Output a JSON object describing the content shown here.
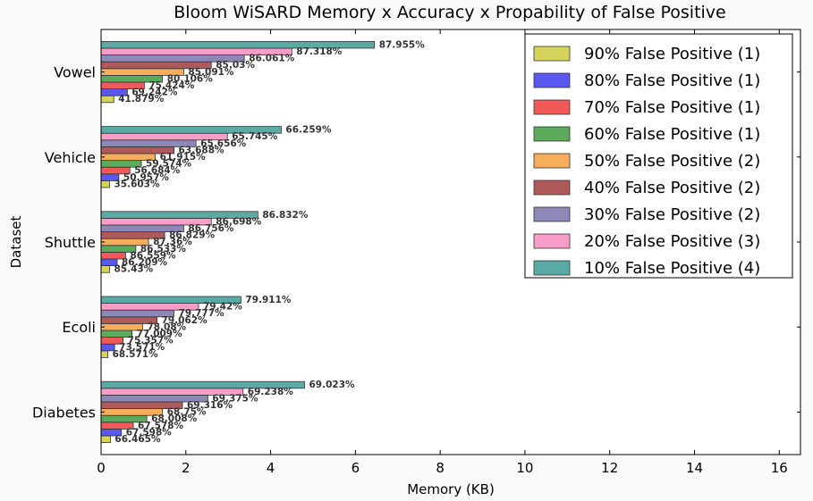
{
  "chart_data": {
    "type": "bar",
    "orientation": "horizontal",
    "title": "Bloom WiSARD Memory x Accuracy x Propability of False Positive",
    "xlabel": "Memory (KB)",
    "ylabel": "Dataset",
    "xlim": [
      0,
      16.5
    ],
    "xticks": [
      "0",
      "2",
      "4",
      "6",
      "8",
      "10",
      "12",
      "14",
      "16"
    ],
    "grid": false,
    "legend_position": "top-right",
    "categories": [
      "Vowel",
      "Vehicle",
      "Shuttle",
      "Ecoli",
      "Diabetes"
    ],
    "series": [
      {
        "name": "90% False Positive (1)",
        "color": "#d4d45a",
        "values": [
          0.3,
          0.2,
          0.2,
          0.16,
          0.22
        ],
        "labels": [
          "41.879%",
          "35.603%",
          "85.43%",
          "68.571%",
          "66.465%"
        ]
      },
      {
        "name": "80% False Positive (1)",
        "color": "#5858ee",
        "values": [
          0.62,
          0.42,
          0.38,
          0.32,
          0.48
        ],
        "labels": [
          "69.242%",
          "50.957%",
          "86.209%",
          "73.571%",
          "67.598%"
        ]
      },
      {
        "name": "70% False Positive (1)",
        "color": "#f25a5a",
        "values": [
          1.02,
          0.68,
          0.58,
          0.52,
          0.76
        ],
        "labels": [
          "75.424%",
          "56.684%",
          "86.559%",
          "75.357%",
          "67.578%"
        ]
      },
      {
        "name": "60% False Positive (1)",
        "color": "#5caa5c",
        "values": [
          1.45,
          0.95,
          0.82,
          0.73,
          1.08
        ],
        "labels": [
          "80.106%",
          "59.574%",
          "86.533%",
          "77.009%",
          "68.008%"
        ]
      },
      {
        "name": "50% False Positive (2)",
        "color": "#f6ae5c",
        "values": [
          1.95,
          1.28,
          1.12,
          0.98,
          1.45
        ],
        "labels": [
          "85.091%",
          "61.915%",
          "87.36%",
          "78.08%",
          "68.75%"
        ]
      },
      {
        "name": "40% False Positive (2)",
        "color": "#ae5a5a",
        "values": [
          2.6,
          1.72,
          1.5,
          1.32,
          1.92
        ],
        "labels": [
          "85.03%",
          "63.688%",
          "86.829%",
          "79.062%",
          "69.316%"
        ]
      },
      {
        "name": "30% False Positive (2)",
        "color": "#8c88b8",
        "values": [
          3.38,
          2.24,
          1.95,
          1.72,
          2.52
        ],
        "labels": [
          "86.061%",
          "65.656%",
          "86.756%",
          "79.777%",
          "69.375%"
        ]
      },
      {
        "name": "20% False Positive (3)",
        "color": "#f89cc8",
        "values": [
          4.5,
          2.98,
          2.6,
          2.3,
          3.35
        ],
        "labels": [
          "87.318%",
          "65.745%",
          "86.698%",
          "79.42%",
          "69.238%"
        ]
      },
      {
        "name": "10% False Positive (4)",
        "color": "#5aaaa6",
        "values": [
          6.45,
          4.25,
          3.7,
          3.3,
          4.8
        ],
        "labels": [
          "87.955%",
          "66.259%",
          "86.832%",
          "79.911%",
          "69.023%"
        ]
      }
    ]
  }
}
